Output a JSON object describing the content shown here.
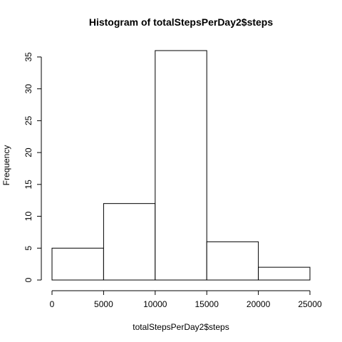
{
  "chart_data": {
    "type": "bar",
    "title": "Histogram of totalStepsPerDay2$steps",
    "xlabel": "totalStepsPerDay2$steps",
    "ylabel": "Frequency",
    "bins": [
      {
        "start": 0,
        "end": 5000,
        "count": 5
      },
      {
        "start": 5000,
        "end": 10000,
        "count": 12
      },
      {
        "start": 10000,
        "end": 15000,
        "count": 36
      },
      {
        "start": 15000,
        "end": 20000,
        "count": 6
      },
      {
        "start": 20000,
        "end": 25000,
        "count": 2
      }
    ],
    "xlim": [
      0,
      25000
    ],
    "ylim": [
      0,
      36
    ],
    "x_ticks": [
      0,
      5000,
      10000,
      15000,
      20000,
      25000
    ],
    "y_ticks": [
      0,
      5,
      10,
      15,
      20,
      25,
      30,
      35
    ],
    "grid": false,
    "bar_fill": "#ffffff",
    "bar_stroke": "#000000"
  }
}
